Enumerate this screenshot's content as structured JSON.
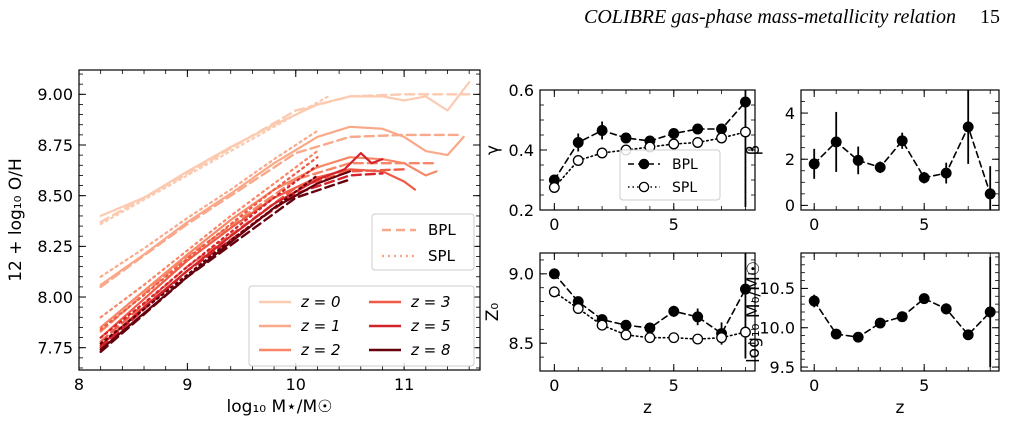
{
  "header": {
    "running_title": "COLIBRE gas-phase mass-metallicity relation",
    "page_number": "15"
  },
  "chart_data": [
    {
      "type": "line",
      "panel": "mzr",
      "xlabel": "log₁₀ M⋆/M☉",
      "ylabel": "12 + log₁₀ O/H",
      "xlim": [
        8.0,
        11.7
      ],
      "ylim": [
        7.64,
        9.12
      ],
      "xticks": [
        8,
        9,
        10,
        11
      ],
      "yticks": [
        7.75,
        8.0,
        8.25,
        8.5,
        8.75,
        9.0
      ],
      "xtick_labels": [
        "8",
        "9",
        "10",
        "11"
      ],
      "ytick_labels": [
        "7.75",
        "8.00",
        "8.25",
        "8.50",
        "8.75",
        "9.00"
      ],
      "legend_style": [
        "BPL",
        "SPL"
      ],
      "legend_style_placement": "right",
      "legend_redshift_placement": "bottom-right",
      "series": [
        {
          "name": "z = 0",
          "color": "#fbcab1",
          "x": [
            8.2,
            8.6,
            9.0,
            9.4,
            9.8,
            10.2,
            10.5,
            10.8,
            11.0,
            11.2,
            11.4,
            11.6
          ],
          "y": [
            8.4,
            8.49,
            8.62,
            8.74,
            8.85,
            8.95,
            8.99,
            8.99,
            8.97,
            8.99,
            8.92,
            9.06
          ],
          "bpl_x": [
            8.2,
            9.0,
            10.0,
            10.5,
            11.0,
            11.6
          ],
          "bpl_y": [
            8.37,
            8.61,
            8.92,
            8.99,
            9.0,
            9.0
          ],
          "spl_x": [
            8.2,
            8.6,
            9.0,
            9.4,
            9.8,
            10.3
          ],
          "spl_y": [
            8.36,
            8.48,
            8.6,
            8.72,
            8.84,
            8.99
          ]
        },
        {
          "name": "z = 1",
          "color": "#f9a98a",
          "x": [
            8.2,
            8.6,
            9.0,
            9.4,
            9.8,
            10.2,
            10.5,
            10.8,
            11.0,
            11.2,
            11.4,
            11.55
          ],
          "y": [
            8.06,
            8.21,
            8.37,
            8.51,
            8.66,
            8.79,
            8.84,
            8.83,
            8.79,
            8.72,
            8.7,
            8.79
          ],
          "bpl_x": [
            8.2,
            9.0,
            10.0,
            10.5,
            11.0,
            11.5
          ],
          "bpl_y": [
            8.05,
            8.36,
            8.71,
            8.79,
            8.8,
            8.8
          ],
          "spl_x": [
            8.2,
            8.6,
            9.0,
            9.4,
            9.8,
            10.2
          ],
          "spl_y": [
            8.1,
            8.24,
            8.39,
            8.53,
            8.68,
            8.82
          ]
        },
        {
          "name": "z = 2",
          "color": "#f78767",
          "x": [
            8.2,
            8.6,
            9.0,
            9.4,
            9.8,
            10.2,
            10.5,
            10.8,
            11.0,
            11.2,
            11.3
          ],
          "y": [
            7.85,
            8.03,
            8.21,
            8.38,
            8.53,
            8.64,
            8.69,
            8.68,
            8.66,
            8.6,
            8.62
          ],
          "bpl_x": [
            8.2,
            9.0,
            10.0,
            10.5,
            11.0,
            11.3
          ],
          "bpl_y": [
            7.83,
            8.2,
            8.58,
            8.66,
            8.66,
            8.66
          ],
          "spl_x": [
            8.2,
            8.6,
            9.0,
            9.4,
            9.8,
            10.2
          ],
          "spl_y": [
            7.9,
            8.06,
            8.23,
            8.4,
            8.56,
            8.72
          ]
        },
        {
          "name": "z = 3",
          "color": "#ef5a45",
          "x": [
            8.2,
            8.6,
            9.0,
            9.4,
            9.8,
            10.2,
            10.5,
            10.8,
            11.0,
            11.1
          ],
          "y": [
            7.8,
            7.99,
            8.18,
            8.34,
            8.49,
            8.59,
            8.63,
            8.62,
            8.57,
            8.53
          ],
          "bpl_x": [
            8.2,
            9.0,
            10.0,
            10.5,
            11.0
          ],
          "bpl_y": [
            7.78,
            8.15,
            8.54,
            8.62,
            8.63
          ],
          "spl_x": [
            8.2,
            8.6,
            9.0,
            9.4,
            9.8,
            10.2
          ],
          "spl_y": [
            7.84,
            8.01,
            8.19,
            8.36,
            8.53,
            8.69
          ]
        },
        {
          "name": "z = 5",
          "color": "#d3232a",
          "x": [
            8.2,
            8.6,
            9.0,
            9.4,
            9.8,
            10.2,
            10.45,
            10.6,
            10.7,
            10.8
          ],
          "y": [
            7.76,
            7.95,
            8.13,
            8.3,
            8.46,
            8.58,
            8.63,
            8.71,
            8.66,
            8.68
          ],
          "bpl_x": [
            8.2,
            9.0,
            10.0,
            10.5,
            10.8
          ],
          "bpl_y": [
            7.75,
            8.13,
            8.51,
            8.6,
            8.61
          ],
          "spl_x": [
            8.2,
            8.6,
            9.0,
            9.4,
            9.8,
            10.2
          ],
          "spl_y": [
            7.8,
            7.97,
            8.15,
            8.32,
            8.49,
            8.65
          ]
        },
        {
          "name": "z = 8",
          "color": "#67000d",
          "x": [
            8.2,
            8.6,
            9.0,
            9.4,
            9.8,
            10.2,
            10.4,
            10.5
          ],
          "y": [
            7.74,
            7.92,
            8.1,
            8.27,
            8.44,
            8.56,
            8.6,
            8.62
          ],
          "bpl_x": [
            8.2,
            9.0,
            10.0,
            10.5
          ],
          "bpl_y": [
            7.73,
            8.1,
            8.49,
            8.58
          ],
          "spl_x": [
            8.2,
            8.6,
            9.0,
            9.4,
            9.8,
            10.2
          ],
          "spl_y": [
            7.77,
            7.94,
            8.11,
            8.28,
            8.44,
            8.6
          ]
        }
      ]
    },
    {
      "type": "scatter",
      "panel": "gamma",
      "ylabel": "γ",
      "xlim": [
        -0.6,
        8.4
      ],
      "ylim": [
        0.2,
        0.6
      ],
      "xticks": [
        0,
        5
      ],
      "xtick_labels": [
        "0",
        "5"
      ],
      "yticks": [
        0.2,
        0.4,
        0.6
      ],
      "ytick_labels": [
        "0.2",
        "0.4",
        "0.6"
      ],
      "legend": [
        "BPL",
        "SPL"
      ],
      "legend_placement": "bottom-right",
      "series": [
        {
          "name": "BPL",
          "marker": "filled",
          "line": "dashed",
          "x": [
            0,
            1,
            2,
            3,
            4,
            5,
            6,
            7,
            8
          ],
          "y": [
            0.3,
            0.425,
            0.465,
            0.44,
            0.43,
            0.455,
            0.47,
            0.47,
            0.56
          ],
          "err": [
            0.015,
            0.03,
            0.03,
            0.01,
            0.01,
            0.01,
            0.015,
            0.015,
            0.35
          ]
        },
        {
          "name": "SPL",
          "marker": "open",
          "line": "dotted",
          "x": [
            0,
            1,
            2,
            3,
            4,
            5,
            6,
            7,
            8
          ],
          "y": [
            0.275,
            0.365,
            0.39,
            0.4,
            0.41,
            0.42,
            0.425,
            0.44,
            0.46
          ],
          "err": [
            0,
            0,
            0,
            0,
            0,
            0,
            0,
            0,
            0
          ]
        }
      ]
    },
    {
      "type": "scatter",
      "panel": "beta",
      "ylabel": "β",
      "xlim": [
        -0.6,
        8.4
      ],
      "ylim": [
        -0.2,
        5.0
      ],
      "xticks": [
        0,
        5
      ],
      "xtick_labels": [
        "0",
        "5"
      ],
      "yticks": [
        0,
        2,
        4
      ],
      "ytick_labels": [
        "0",
        "2",
        "4"
      ],
      "series": [
        {
          "name": "BPL",
          "marker": "filled",
          "line": "dashed",
          "x": [
            0,
            1,
            2,
            3,
            4,
            5,
            6,
            7,
            8
          ],
          "y": [
            1.8,
            2.75,
            1.95,
            1.65,
            2.8,
            1.2,
            1.4,
            3.4,
            0.5
          ],
          "err": [
            0.65,
            1.3,
            0.6,
            0.25,
            0.35,
            0.25,
            0.45,
            1.6,
            1.2
          ]
        }
      ]
    },
    {
      "type": "scatter",
      "panel": "z0",
      "ylabel": "Z₀",
      "xlabel": "z",
      "xlim": [
        -0.6,
        8.4
      ],
      "ylim": [
        8.3,
        9.15
      ],
      "xticks": [
        0,
        5
      ],
      "xtick_labels": [
        "0",
        "5"
      ],
      "yticks": [
        8.5,
        9.0
      ],
      "ytick_labels": [
        "8.5",
        "9.0"
      ],
      "series": [
        {
          "name": "BPL",
          "marker": "filled",
          "line": "dashed",
          "x": [
            0,
            1,
            2,
            3,
            4,
            5,
            6,
            7,
            8
          ],
          "y": [
            9.0,
            8.8,
            8.67,
            8.63,
            8.61,
            8.73,
            8.69,
            8.57,
            8.89
          ],
          "err": [
            0.01,
            0.02,
            0.02,
            0.02,
            0.02,
            0.04,
            0.06,
            0.08,
            0.5
          ]
        },
        {
          "name": "SPL",
          "marker": "open",
          "line": "dotted",
          "x": [
            0,
            1,
            2,
            3,
            4,
            5,
            6,
            7,
            8
          ],
          "y": [
            8.87,
            8.75,
            8.63,
            8.56,
            8.54,
            8.54,
            8.53,
            8.54,
            8.58
          ],
          "err": [
            0,
            0,
            0,
            0,
            0,
            0,
            0,
            0,
            0
          ]
        }
      ]
    },
    {
      "type": "scatter",
      "panel": "m0",
      "ylabel": "log₁₀ M₀/M☉",
      "xlabel": "z",
      "xlim": [
        -0.6,
        8.4
      ],
      "ylim": [
        9.45,
        10.95
      ],
      "xticks": [
        0,
        5
      ],
      "xtick_labels": [
        "0",
        "5"
      ],
      "yticks": [
        9.5,
        10.0,
        10.5
      ],
      "ytick_labels": [
        "9.5",
        "10.0",
        "10.5"
      ],
      "series": [
        {
          "name": "BPL",
          "marker": "filled",
          "line": "dashed",
          "x": [
            0,
            1,
            2,
            3,
            4,
            5,
            6,
            7,
            8
          ],
          "y": [
            10.34,
            9.92,
            9.88,
            10.06,
            10.14,
            10.37,
            10.24,
            9.91,
            10.2
          ],
          "err": [
            0.08,
            0.06,
            0.05,
            0.03,
            0.03,
            0.03,
            0.07,
            0.04,
            0.7
          ]
        }
      ]
    }
  ]
}
